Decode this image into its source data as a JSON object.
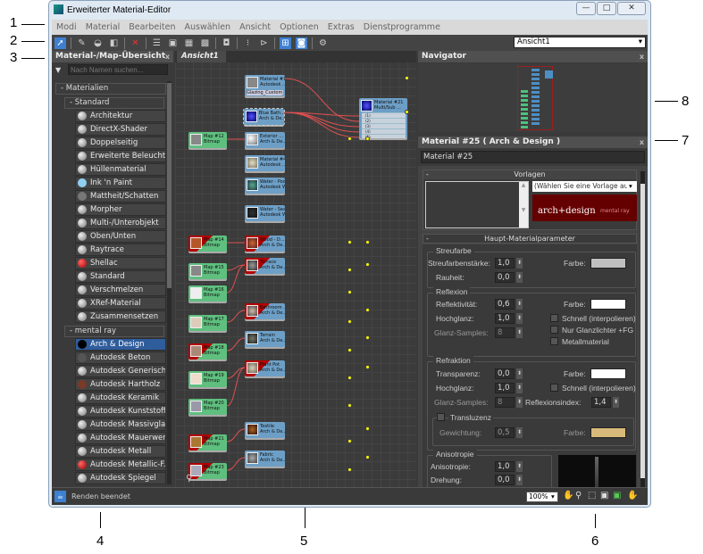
{
  "window": {
    "title": "Erweiterter Material-Editor",
    "min": "—",
    "max": "□",
    "close": "✕"
  },
  "menu": [
    "Modi",
    "Material",
    "Bearbeiten",
    "Auswählen",
    "Ansicht",
    "Optionen",
    "Extras",
    "Dienstprogramme"
  ],
  "toolbar": {
    "view_select": "Ansicht1"
  },
  "browser": {
    "title": "Material-/Map-Übersicht",
    "close": "x",
    "search_placeholder": "Nach Namen suchen...",
    "group_materials": "- Materialien",
    "group_standard": "- Standard",
    "standard_items": [
      "Architektur",
      "DirectX-Shader",
      "Doppelseitig",
      "Erweiterte Beleucht...",
      "Hüllenmaterial",
      "Ink 'n Paint",
      "Mattheit/Schatten",
      "Morpher",
      "Multi-/Unterobjekt",
      "Oben/Unten",
      "Raytrace",
      "Shellac",
      "Standard",
      "Verschmelzen",
      "XRef-Material",
      "Zusammensetzen"
    ],
    "group_mentalray": "- mental ray",
    "mentalray_items": [
      "Arch & Design",
      "Autodesk Beton",
      "Autodesk Generisch",
      "Autodesk Hartholz",
      "Autodesk Keramik",
      "Autodesk Kunststoff...",
      "Autodesk Massivglas",
      "Autodesk Mauerwer...",
      "Autodesk Metall",
      "Autodesk Metallic-F...",
      "Autodesk Spiegel"
    ],
    "selected": "Arch & Design"
  },
  "view": {
    "tab": "Ansicht1",
    "nodes": [
      {
        "t": "Material #12",
        "s": "Autodesk ...",
        "extra": "Glazing_Custom_Color..."
      },
      {
        "t": "Blue Bath...",
        "s": "Arch & De..."
      },
      {
        "t": "Material #21",
        "s": "Multi/Sub ..."
      },
      {
        "t": "Map #12",
        "s": "Bitmap"
      },
      {
        "t": "Exterior ...",
        "s": "Arch & De..."
      },
      {
        "t": "Material #4",
        "s": "Autodesk ..."
      },
      {
        "t": "Water - Pool",
        "s": "Autodesk Wa..."
      },
      {
        "t": "Water - Sea",
        "s": "Autodesk Wa..."
      },
      {
        "t": "Map #14",
        "s": "Bitmap"
      },
      {
        "t": "Wood - D...",
        "s": "Arch & De..."
      },
      {
        "t": "Map #15",
        "s": "Bitmap"
      },
      {
        "t": "Terrace",
        "s": "Arch & De..."
      },
      {
        "t": "Map #16",
        "s": "Bitmap"
      },
      {
        "t": "Map #17",
        "s": "Bitmap"
      },
      {
        "t": "Bathroom ...",
        "s": "Arch & De..."
      },
      {
        "t": "Map #18",
        "s": "Bitmap"
      },
      {
        "t": "Terrain",
        "s": "Arch & De..."
      },
      {
        "t": "Map #19",
        "s": "Bitmap"
      },
      {
        "t": "Plant Pot",
        "s": "Arch & De..."
      },
      {
        "t": "Map #20",
        "s": "Bitmap"
      },
      {
        "t": "Map #21",
        "s": "Bitmap"
      },
      {
        "t": "Textile",
        "s": "Arch & De..."
      },
      {
        "t": "Map #23",
        "s": "Bitmap"
      },
      {
        "t": "Fabric",
        "s": "Arch & De..."
      }
    ],
    "multi_slots": [
      "(1)",
      "(2)",
      "(3)",
      "(4)",
      "(5)"
    ]
  },
  "navigator": {
    "title": "Navigator",
    "close": "x"
  },
  "params": {
    "title": "Material #25  ( Arch & Design )",
    "close": "x",
    "name": "Material #25",
    "templates": {
      "header": "Vorlagen",
      "select": "(Wählen Sie eine Vorlage aus)",
      "logo": "arch+design",
      "logo_sub": "mental ray"
    },
    "main_header": "Haupt-Materialparameter",
    "diffuse": {
      "label": "Streufarbe",
      "level_label": "Streufarbenstärke:",
      "level": "1,0",
      "rough_label": "Rauheit:",
      "rough": "0,0",
      "color_label": "Farbe:",
      "color": "#c0c0c0"
    },
    "reflection": {
      "label": "Reflexion",
      "refl_label": "Reflektivität:",
      "refl": "0,6",
      "gloss_label": "Hochglanz:",
      "gloss": "1,0",
      "samples_label": "Glanz-Samples:",
      "samples": "8",
      "color_label": "Farbe:",
      "color": "#ffffff",
      "fast": "Schnell (interpolieren)",
      "highlights": "Nur Glanzlichter +FG",
      "metal": "Metallmaterial"
    },
    "refraction": {
      "label": "Refraktion",
      "transp_label": "Transparenz:",
      "transp": "0,0",
      "gloss_label": "Hochglanz:",
      "gloss": "1,0",
      "samples_label": "Glanz-Samples:",
      "samples": "8",
      "color_label": "Farbe:",
      "color": "#ffffff",
      "fast": "Schnell (interpolieren)",
      "ior_label": "Reflexionsindex:",
      "ior": "1,4",
      "translucency": "Transluzenz",
      "weight_label": "Gewichtung:",
      "weight": "0,5",
      "t_color_label": "Farbe:",
      "t_color": "#d9b97a"
    },
    "anisotropy": {
      "label": "Anisotropie",
      "aniso_label": "Anisotropie:",
      "aniso": "1,0",
      "rot_label": "Drehung:",
      "rot": "0,0"
    }
  },
  "status": {
    "text": "Renden beendet",
    "zoom": "100%"
  },
  "callouts": [
    "1",
    "2",
    "3",
    "4",
    "5",
    "6",
    "7",
    "8"
  ]
}
